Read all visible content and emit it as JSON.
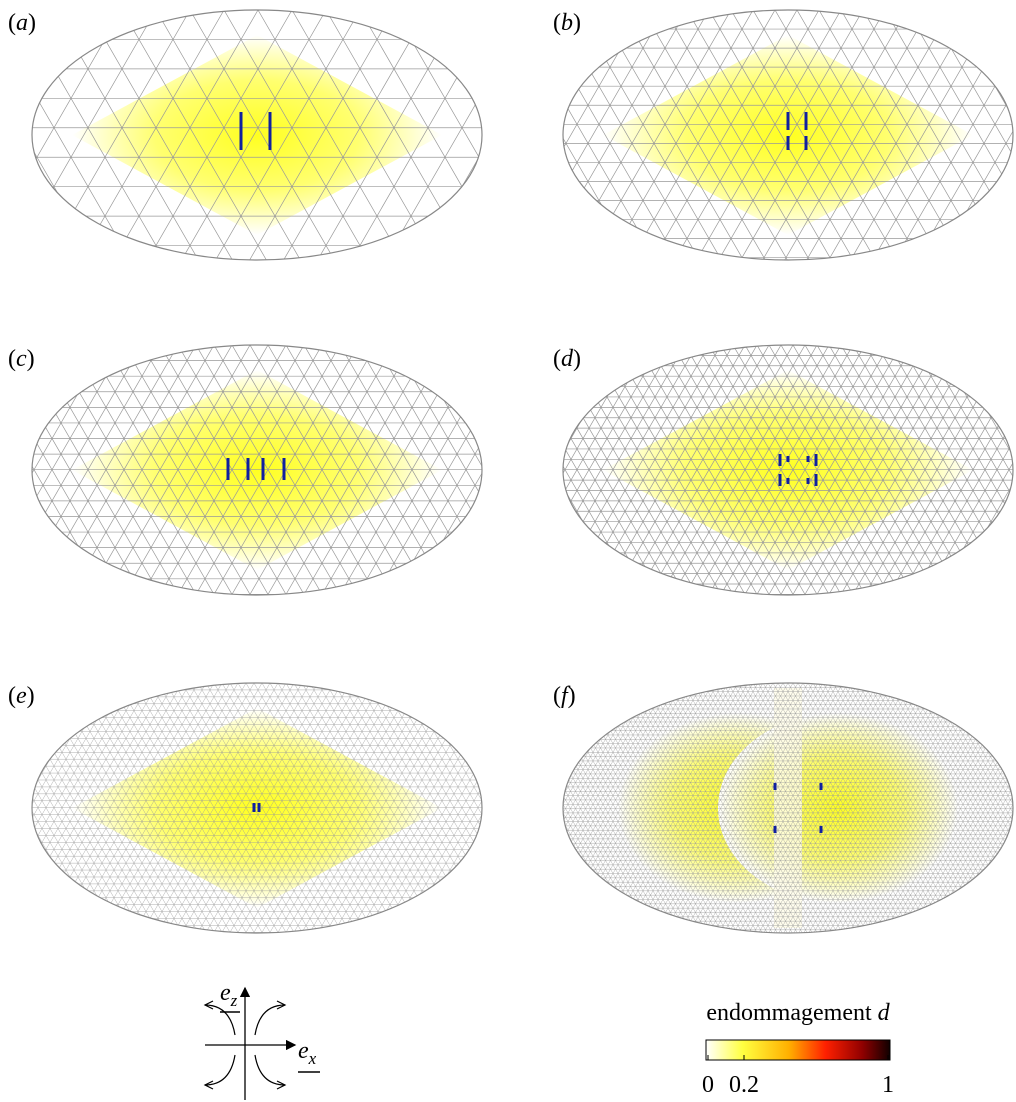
{
  "panels": [
    {
      "open": "(",
      "letter": "a",
      "close": ")"
    },
    {
      "open": "(",
      "letter": "b",
      "close": ")"
    },
    {
      "open": "(",
      "letter": "c",
      "close": ")"
    },
    {
      "open": "(",
      "letter": "d",
      "close": ")"
    },
    {
      "open": "(",
      "letter": "e",
      "close": ")"
    },
    {
      "open": "(",
      "letter": "f",
      "close": ")"
    }
  ],
  "axes": {
    "z": {
      "symbol": "e",
      "index": "z"
    },
    "x": {
      "symbol": "e",
      "index": "x"
    }
  },
  "colorbar": {
    "title": "endommagement",
    "symbol": "d",
    "lim": [
      0,
      1
    ],
    "ticks": [
      0,
      0.2,
      1
    ]
  }
}
